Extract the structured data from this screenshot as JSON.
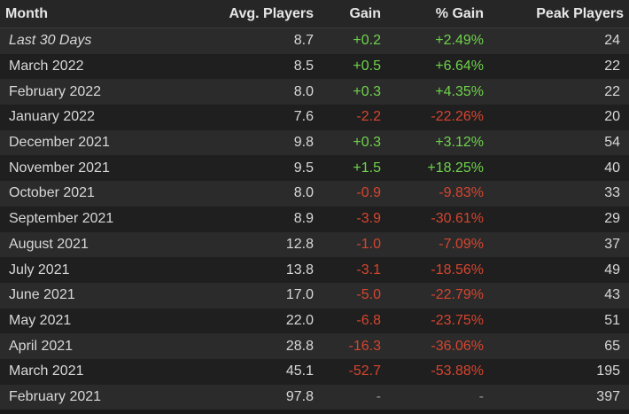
{
  "colors": {
    "background": "#1b1b1b",
    "row_odd": "#2b2b2b",
    "row_even": "#1f1f1f",
    "positive": "#6fd34c",
    "negative": "#d6452f"
  },
  "table": {
    "headers": {
      "month": "Month",
      "avg_players": "Avg. Players",
      "gain": "Gain",
      "pct_gain": "% Gain",
      "peak_players": "Peak Players"
    },
    "rows": [
      {
        "month": "Last 30 Days",
        "avg": "8.7",
        "gain": "+0.2",
        "pct": "+2.49%",
        "peak": "24",
        "trend": "pos",
        "italic": true
      },
      {
        "month": "March 2022",
        "avg": "8.5",
        "gain": "+0.5",
        "pct": "+6.64%",
        "peak": "22",
        "trend": "pos"
      },
      {
        "month": "February 2022",
        "avg": "8.0",
        "gain": "+0.3",
        "pct": "+4.35%",
        "peak": "22",
        "trend": "pos"
      },
      {
        "month": "January 2022",
        "avg": "7.6",
        "gain": "-2.2",
        "pct": "-22.26%",
        "peak": "20",
        "trend": "neg"
      },
      {
        "month": "December 2021",
        "avg": "9.8",
        "gain": "+0.3",
        "pct": "+3.12%",
        "peak": "54",
        "trend": "pos"
      },
      {
        "month": "November 2021",
        "avg": "9.5",
        "gain": "+1.5",
        "pct": "+18.25%",
        "peak": "40",
        "trend": "pos"
      },
      {
        "month": "October 2021",
        "avg": "8.0",
        "gain": "-0.9",
        "pct": "-9.83%",
        "peak": "33",
        "trend": "neg"
      },
      {
        "month": "September 2021",
        "avg": "8.9",
        "gain": "-3.9",
        "pct": "-30.61%",
        "peak": "29",
        "trend": "neg"
      },
      {
        "month": "August 2021",
        "avg": "12.8",
        "gain": "-1.0",
        "pct": "-7.09%",
        "peak": "37",
        "trend": "neg"
      },
      {
        "month": "July 2021",
        "avg": "13.8",
        "gain": "-3.1",
        "pct": "-18.56%",
        "peak": "49",
        "trend": "neg"
      },
      {
        "month": "June 2021",
        "avg": "17.0",
        "gain": "-5.0",
        "pct": "-22.79%",
        "peak": "43",
        "trend": "neg"
      },
      {
        "month": "May 2021",
        "avg": "22.0",
        "gain": "-6.8",
        "pct": "-23.75%",
        "peak": "51",
        "trend": "neg"
      },
      {
        "month": "April 2021",
        "avg": "28.8",
        "gain": "-16.3",
        "pct": "-36.06%",
        "peak": "65",
        "trend": "neg"
      },
      {
        "month": "March 2021",
        "avg": "45.1",
        "gain": "-52.7",
        "pct": "-53.88%",
        "peak": "195",
        "trend": "neg"
      },
      {
        "month": "February 2021",
        "avg": "97.8",
        "gain": "-",
        "pct": "-",
        "peak": "397",
        "trend": "none"
      }
    ]
  }
}
